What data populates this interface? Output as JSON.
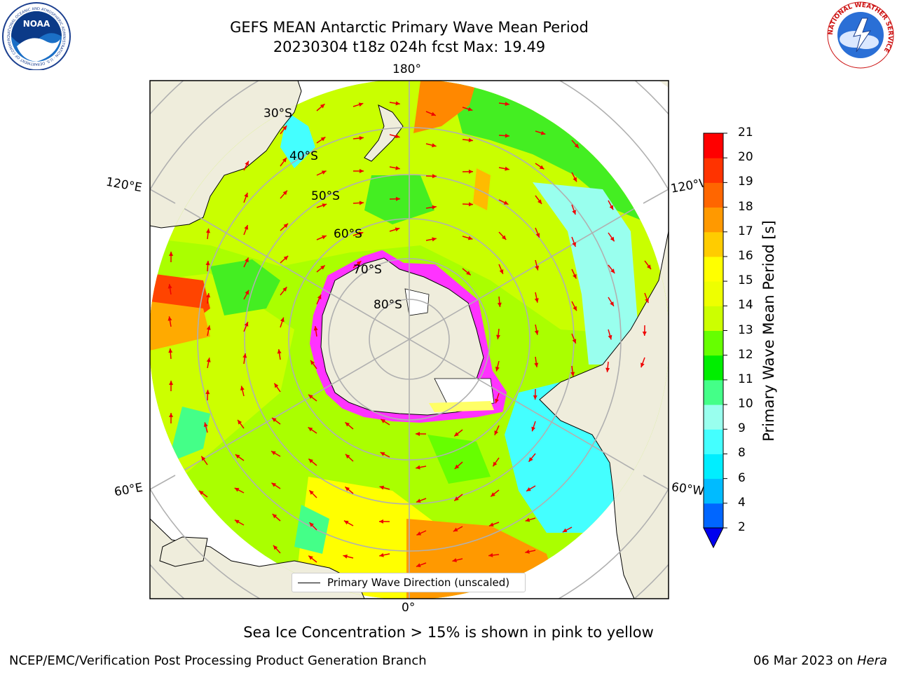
{
  "title": {
    "line1": "GEFS MEAN Antarctic Primary Wave Mean Period",
    "line2": "20230304 t18z 024h fcst   Max: 19.49"
  },
  "map": {
    "projection": "south polar stereographic",
    "longitude_labels": {
      "top": "180°",
      "bottom": "0°",
      "upper_left": "120°E",
      "upper_right": "120°W",
      "lower_left": "60°E",
      "lower_right": "60°W"
    },
    "latitude_labels": [
      "30°S",
      "40°S",
      "50°S",
      "60°S",
      "70°S",
      "80°S"
    ],
    "legend_label": "Primary Wave Direction (unscaled)",
    "arrow_color": "#ee0000",
    "land_color": "#efeddc",
    "sea_ice_colors": [
      "#ff33ff",
      "#ffff66"
    ]
  },
  "colorbar": {
    "title": "Primary Wave Mean Period [s]",
    "ticks": [
      "2",
      "4",
      "6",
      "8",
      "9",
      "10",
      "11",
      "12",
      "13",
      "14",
      "15",
      "16",
      "17",
      "18",
      "19",
      "20",
      "21"
    ],
    "colors": [
      "#0066ff",
      "#00bbff",
      "#00eeff",
      "#44ffff",
      "#99ffee",
      "#44ff88",
      "#00ee00",
      "#66ff00",
      "#ccff00",
      "#eeff00",
      "#ffff00",
      "#ffcc00",
      "#ff9900",
      "#ff6600",
      "#ff3300",
      "#ff0000"
    ],
    "extend_color": "#0000ee"
  },
  "caption": "Sea Ice Concentration > 15% is shown in pink to yellow",
  "footer": {
    "left": "NCEP/EMC/Verification Post Processing Product Generation Branch",
    "right_date": "06 Mar 2023 on ",
    "right_machine": "Hera"
  },
  "logos": {
    "left": "NOAA",
    "left_ring": "NATIONAL OCEANIC AND ATMOSPHERIC ADMINISTRATION · U.S. DEPARTMENT OF COMMERCE",
    "right_ring": "NATIONAL WEATHER SERVICE"
  }
}
